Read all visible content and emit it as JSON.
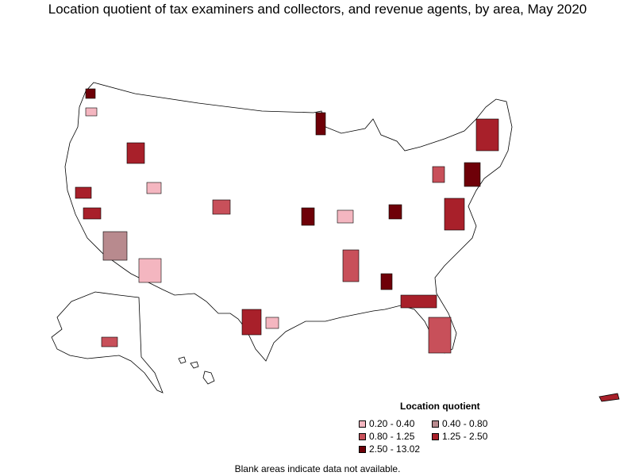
{
  "title": "Location quotient of tax examiners and collectors, and revenue agents, by area, May 2020",
  "legend": {
    "title": "Location quotient",
    "items": [
      {
        "label": "0.20 - 0.40",
        "color": "#f4b6c0"
      },
      {
        "label": "0.40 - 0.80",
        "color": "#b88a8e"
      },
      {
        "label": "0.80 - 1.25",
        "color": "#c8505a"
      },
      {
        "label": "1.25 - 2.50",
        "color": "#a8202a"
      },
      {
        "label": "2.50 - 13.02",
        "color": "#6e0008"
      }
    ]
  },
  "footnote": "Blank areas indicate data not available.",
  "colors": {
    "outline": "#000000",
    "blank": "#ffffff"
  }
}
